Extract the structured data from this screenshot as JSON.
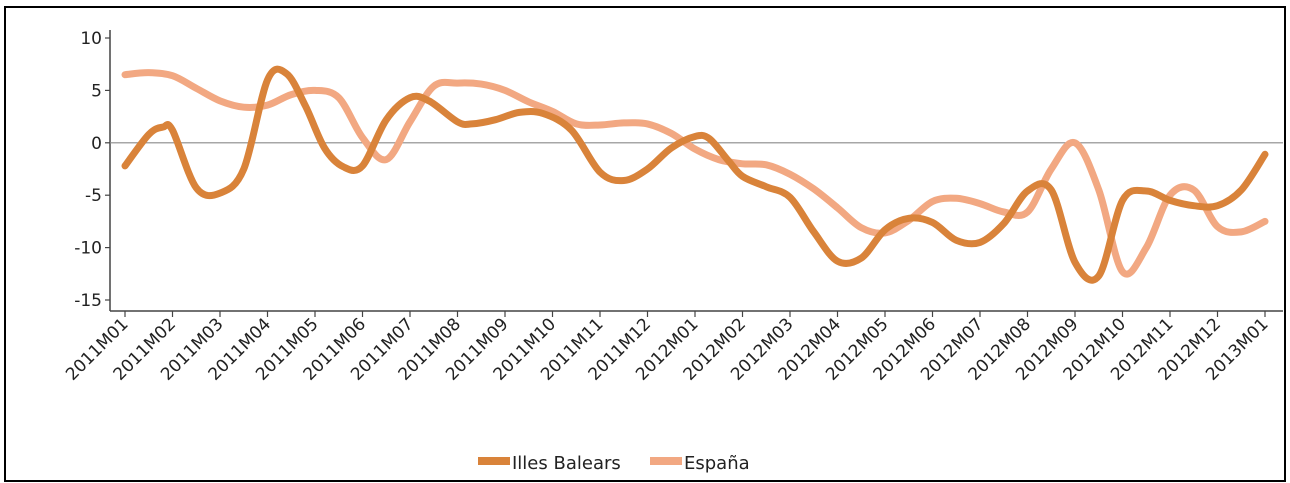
{
  "chart_data": {
    "type": "line",
    "title": "",
    "xlabel": "",
    "ylabel": "",
    "ylim": [
      -16,
      10.5
    ],
    "y_ticks": [
      10,
      5,
      0,
      -5,
      -10,
      -15
    ],
    "grid": false,
    "zero_line": true,
    "legend_position": "bottom",
    "categories": [
      "2011M01",
      "2011M02",
      "2011M03",
      "2011M04",
      "2011M05",
      "2011M06",
      "2011M07",
      "2011M08",
      "2011M09",
      "2011M10",
      "2011M11",
      "2011M12",
      "2012M01",
      "2012M02",
      "2012M03",
      "2012M04",
      "2012M05",
      "2012M06",
      "2012M07",
      "2012M08",
      "2012M09",
      "2012M10",
      "2012M11",
      "2012M12",
      "2013M01"
    ],
    "series": [
      {
        "name": "Illes Balears",
        "color": "#D9833A",
        "x": [
          0,
          0.5,
          0.8,
          1,
          1.5,
          2,
          2.5,
          3,
          3.4,
          3.8,
          4.2,
          4.6,
          5,
          5.5,
          6,
          6.4,
          7,
          7.3,
          7.8,
          8.3,
          8.8,
          9.4,
          10,
          10.5,
          11,
          11.5,
          12,
          12.3,
          12.7,
          13,
          13.5,
          14,
          14.5,
          15,
          15.5,
          16,
          16.5,
          17,
          17.5,
          18,
          18.5,
          19,
          19.5,
          20,
          20.5,
          21,
          21.5,
          22,
          22.5,
          23,
          23.5,
          24
        ],
        "values": [
          -2.2,
          0.8,
          1.5,
          1.2,
          -4.3,
          -4.8,
          -2.5,
          6.0,
          6.6,
          3.5,
          -0.5,
          -2.3,
          -2.2,
          2.2,
          4.3,
          4.0,
          2.0,
          1.8,
          2.2,
          2.9,
          2.8,
          1.2,
          -2.8,
          -3.6,
          -2.5,
          -0.5,
          0.6,
          0.4,
          -1.7,
          -3.2,
          -4.2,
          -5.2,
          -8.5,
          -11.3,
          -11.0,
          -8.3,
          -7.2,
          -7.6,
          -9.3,
          -9.5,
          -7.7,
          -4.6,
          -4.5,
          -11.4,
          -12.7,
          -5.5,
          -4.6,
          -5.5,
          -6.0,
          -6.0,
          -4.5,
          -1.1
        ]
      },
      {
        "name": "España",
        "color": "#F2A882",
        "x": [
          0,
          0.5,
          1,
          1.5,
          2,
          2.5,
          3,
          3.5,
          4,
          4.5,
          5,
          5.5,
          6,
          6.5,
          7,
          7.5,
          8,
          8.5,
          9,
          9.5,
          10,
          10.5,
          11,
          11.5,
          12,
          12.5,
          13,
          13.5,
          14,
          14.5,
          15,
          15.5,
          16,
          16.5,
          17,
          17.5,
          18,
          18.5,
          19,
          19.5,
          20,
          20.5,
          21,
          21.5,
          22,
          22.5,
          23,
          23.5,
          24
        ],
        "values": [
          6.5,
          6.7,
          6.4,
          5.2,
          4.0,
          3.4,
          3.6,
          4.6,
          5.0,
          4.3,
          0.5,
          -1.6,
          2.0,
          5.4,
          5.7,
          5.6,
          5.0,
          3.9,
          3.0,
          1.8,
          1.7,
          1.9,
          1.8,
          0.9,
          -0.6,
          -1.6,
          -2.0,
          -2.1,
          -3.0,
          -4.4,
          -6.2,
          -8.1,
          -8.6,
          -7.4,
          -5.6,
          -5.3,
          -5.8,
          -6.6,
          -6.6,
          -2.5,
          0.0,
          -4.5,
          -12.3,
          -10.0,
          -5.0,
          -4.5,
          -8.0,
          -8.5,
          -7.5
        ]
      }
    ]
  }
}
